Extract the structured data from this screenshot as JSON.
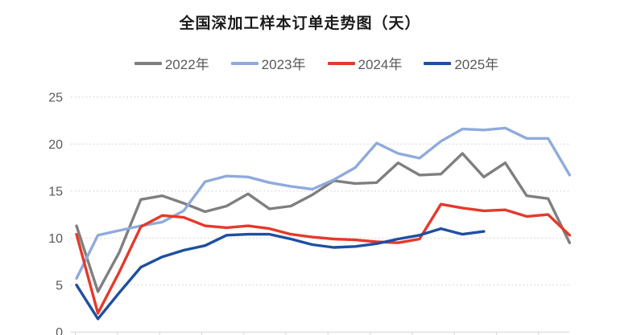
{
  "page": {
    "background": "#ffffff"
  },
  "header": {
    "title": "全国深加工样本订单走势图（天）",
    "title_color": "#1a1a1a"
  },
  "legend": {
    "position": "top",
    "text_color": "#595959"
  },
  "axes": {
    "y_tick_labels": [
      "25",
      "20",
      "15",
      "10",
      "5",
      "0"
    ],
    "x_tick_labels_visible": false,
    "gridline_color": "#d9d9d9",
    "label_color": "#595959"
  },
  "chart_data": {
    "type": "line",
    "title": "全国深加工样本订单走势图（天）",
    "xlabel": "",
    "ylabel": "",
    "x": [
      1,
      2,
      3,
      4,
      5,
      6,
      7,
      8,
      9,
      10,
      11,
      12,
      13,
      14,
      15,
      16,
      17,
      18,
      19,
      20,
      21,
      22,
      23,
      24
    ],
    "x_note": "24 evenly spaced points (semi-monthly); x-axis tick labels are cropped out of view, ticks drawn every 2 points",
    "ylim": [
      0,
      25
    ],
    "yticks": [
      0,
      5,
      10,
      15,
      20,
      25
    ],
    "grid": "horizontal-dashed",
    "legend_position": "top",
    "series": [
      {
        "name": "2022年",
        "color": "#7f7f7f",
        "values": [
          11.3,
          4.3,
          8.5,
          14.1,
          14.5,
          13.7,
          12.8,
          13.4,
          14.7,
          13.1,
          13.4,
          14.6,
          16.1,
          15.8,
          15.9,
          18.0,
          16.7,
          16.8,
          19.0,
          16.5,
          18.0,
          14.5,
          14.2,
          9.5
        ]
      },
      {
        "name": "2023年",
        "color": "#8faadc",
        "values": [
          5.7,
          10.3,
          10.8,
          11.3,
          11.7,
          12.9,
          16.0,
          16.6,
          16.5,
          15.9,
          15.5,
          15.2,
          16.2,
          17.5,
          20.1,
          19.0,
          18.5,
          20.3,
          21.6,
          21.5,
          21.7,
          20.6,
          20.6,
          16.7
        ]
      },
      {
        "name": "2024年",
        "color": "#e5392b",
        "values": [
          10.4,
          2.0,
          6.4,
          11.2,
          12.4,
          12.2,
          11.3,
          11.1,
          11.3,
          11.0,
          10.4,
          10.1,
          9.9,
          9.8,
          9.6,
          9.5,
          9.9,
          13.6,
          13.2,
          12.9,
          13.0,
          12.3,
          12.5,
          10.3
        ]
      },
      {
        "name": "2025年",
        "color": "#1f4f9f",
        "values": [
          5.0,
          1.4,
          4.2,
          6.9,
          8.0,
          8.7,
          9.2,
          10.3,
          10.4,
          10.4,
          9.9,
          9.3,
          9.0,
          9.1,
          9.4,
          9.9,
          10.3,
          11.0,
          10.4,
          10.7
        ]
      }
    ]
  }
}
